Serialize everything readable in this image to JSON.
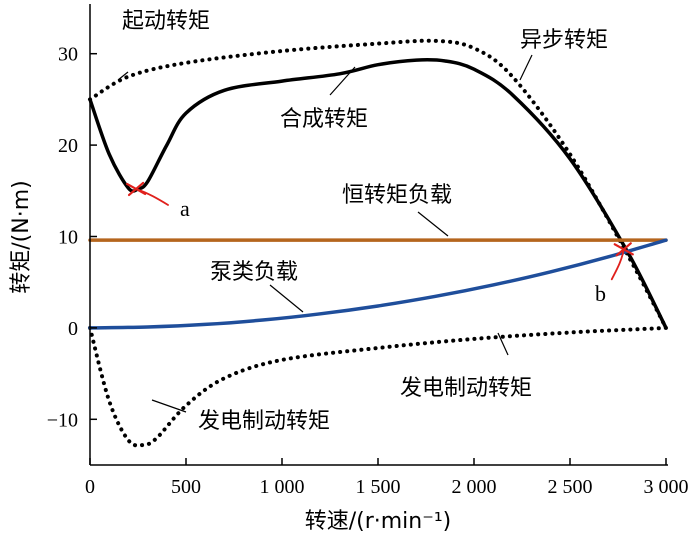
{
  "chart_data": {
    "type": "line",
    "xlabel": "转速/(r·min⁻¹)",
    "ylabel": "转矩/(N·m)",
    "xlim": [
      0,
      3000
    ],
    "ylim": [
      -15,
      35
    ],
    "xticks": [
      0,
      500,
      1000,
      1500,
      2000,
      2500,
      3000
    ],
    "xtick_labels": [
      "0",
      "500",
      "1 000",
      "1 500",
      "2 000",
      "2 500",
      "3 000"
    ],
    "yticks": [
      -10,
      0,
      10,
      20,
      30
    ],
    "ytick_labels": [
      "−10",
      "0",
      "10",
      "20",
      "30"
    ],
    "grid": false,
    "series": [
      {
        "name": "异步转矩",
        "style": "dotted",
        "color": "#000000",
        "x": [
          0,
          200,
          500,
          1000,
          1500,
          1800,
          2000,
          2200,
          2500,
          2800,
          3000
        ],
        "y": [
          25,
          27.5,
          29,
          30.3,
          31.1,
          31.4,
          30.6,
          27.5,
          19,
          8,
          0
        ]
      },
      {
        "name": "合成转矩",
        "style": "solid",
        "color": "#000000",
        "x": [
          0,
          100,
          200,
          250,
          300,
          400,
          500,
          700,
          1000,
          1300,
          1500,
          1700,
          1850,
          2000,
          2200,
          2500,
          2800,
          3000
        ],
        "y": [
          25,
          19,
          15.3,
          15.2,
          16,
          20,
          23.5,
          26,
          27,
          27.8,
          28.8,
          29.3,
          29.2,
          28.3,
          25.5,
          18.5,
          8.3,
          0
        ]
      },
      {
        "name": "发电制动转矩",
        "style": "dotted",
        "color": "#000000",
        "x": [
          0,
          100,
          200,
          280,
          350,
          500,
          700,
          1000,
          1500,
          2000,
          2500,
          2800,
          3000
        ],
        "y": [
          0,
          -8,
          -12.3,
          -12.8,
          -12,
          -8.5,
          -5.5,
          -3.5,
          -2.2,
          -1.2,
          -0.5,
          -0.2,
          0
        ]
      },
      {
        "name": "恒转矩负载",
        "style": "solid",
        "color": "#b5651d",
        "x": [
          0,
          3000
        ],
        "y": [
          9.6,
          9.6
        ]
      },
      {
        "name": "泵类负载",
        "style": "solid",
        "color": "#1f4e9b",
        "x": [
          0,
          300,
          600,
          900,
          1200,
          1500,
          1800,
          2100,
          2400,
          2700,
          3000
        ],
        "y": [
          0,
          0.1,
          0.38,
          0.86,
          1.54,
          2.4,
          3.46,
          4.7,
          6.14,
          7.78,
          9.6
        ]
      }
    ],
    "points": [
      {
        "label": "a",
        "x": 240,
        "y": 15.2
      },
      {
        "label": "b",
        "x": 2780,
        "y": 8.6
      }
    ],
    "annotations": [
      {
        "text": "起动转矩",
        "series": "异步转矩"
      },
      {
        "text": "异步转矩",
        "series": "异步转矩"
      },
      {
        "text": "合成转矩",
        "series": "合成转矩"
      },
      {
        "text": "恒转矩负载",
        "series": "恒转矩负载"
      },
      {
        "text": "泵类负载",
        "series": "泵类负载"
      },
      {
        "text": "发电制动转矩",
        "series": "发电制动转矩"
      },
      {
        "text": "发电制动转矩",
        "series": "发电制动转矩"
      }
    ]
  }
}
